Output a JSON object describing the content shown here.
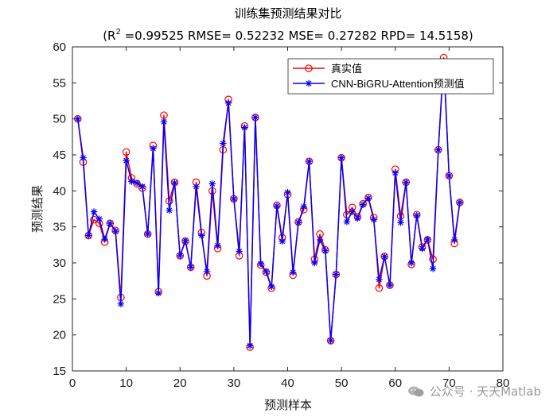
{
  "chart_data": {
    "type": "line",
    "title": "训练集预测结果对比",
    "subtitle_prefix": "(R",
    "subtitle_sup": "2",
    "subtitle_rest": " =0.99525 RMSE= 0.52232 MSE= 0.27282 RPD= 14.5158)",
    "xlabel": "预测样本",
    "ylabel": "预测结果",
    "xlim": [
      0,
      80
    ],
    "ylim": [
      15,
      60
    ],
    "xticks": [
      0,
      10,
      20,
      30,
      40,
      50,
      60,
      70,
      80
    ],
    "yticks": [
      15,
      20,
      25,
      30,
      35,
      40,
      45,
      50,
      55,
      60
    ],
    "legend_position": "top-right",
    "x": [
      1,
      2,
      3,
      4,
      5,
      6,
      7,
      8,
      9,
      10,
      11,
      12,
      13,
      14,
      15,
      16,
      17,
      18,
      19,
      20,
      21,
      22,
      23,
      24,
      25,
      26,
      27,
      28,
      29,
      30,
      31,
      32,
      33,
      34,
      35,
      36,
      37,
      38,
      39,
      40,
      41,
      42,
      43,
      44,
      45,
      46,
      47,
      48,
      49,
      50,
      51,
      52,
      53,
      54,
      55,
      56,
      57,
      58,
      59,
      60,
      61,
      62,
      63,
      64,
      65,
      66,
      67,
      68,
      69,
      70,
      71,
      72
    ],
    "series": [
      {
        "name": "真实值",
        "color": "#ff0000",
        "marker": "circle",
        "values": [
          50.0,
          44.0,
          33.8,
          36.0,
          35.5,
          32.9,
          35.5,
          34.5,
          25.2,
          45.4,
          41.8,
          41.0,
          40.4,
          34.0,
          46.3,
          26.0,
          50.5,
          38.6,
          41.2,
          31.0,
          33.0,
          29.4,
          41.2,
          34.2,
          28.2,
          40.0,
          32.0,
          45.7,
          52.7,
          38.9,
          31.0,
          49.0,
          18.3,
          50.2,
          29.7,
          28.7,
          26.5,
          38.0,
          33.5,
          39.5,
          28.3,
          35.7,
          37.4,
          44.1,
          30.5,
          34.0,
          31.8,
          19.2,
          28.4,
          44.6,
          36.7,
          37.7,
          36.4,
          38.2,
          39.1,
          36.3,
          26.5,
          30.9,
          26.9,
          43.0,
          36.5,
          41.2,
          29.8,
          36.7,
          32.2,
          33.2,
          30.5,
          45.7,
          58.5,
          42.1,
          32.7,
          38.4
        ]
      },
      {
        "name": "CNN-BiGRU-Attention预测值",
        "color": "#0000ff",
        "marker": "asterisk",
        "values": [
          50.0,
          44.6,
          33.8,
          37.1,
          36.1,
          33.3,
          35.5,
          34.4,
          24.3,
          44.2,
          41.3,
          41.1,
          40.6,
          34.0,
          45.9,
          25.8,
          49.6,
          37.3,
          41.1,
          31.0,
          33.1,
          29.4,
          40.6,
          33.8,
          28.8,
          41.0,
          32.4,
          46.6,
          52.2,
          38.9,
          31.6,
          48.8,
          18.5,
          50.2,
          29.9,
          28.8,
          26.7,
          37.9,
          33.0,
          39.8,
          28.7,
          35.6,
          37.8,
          44.1,
          30.0,
          33.2,
          31.7,
          19.2,
          28.4,
          44.6,
          35.7,
          37.1,
          36.2,
          38.1,
          39.0,
          36.0,
          27.7,
          30.9,
          26.9,
          42.5,
          35.6,
          41.2,
          30.0,
          36.6,
          32.0,
          33.3,
          29.2,
          45.7,
          58.0,
          42.1,
          33.2,
          38.4
        ]
      }
    ]
  },
  "watermark": {
    "icon": "wechat-icon",
    "text": "公众号 · 天天Matlab"
  }
}
